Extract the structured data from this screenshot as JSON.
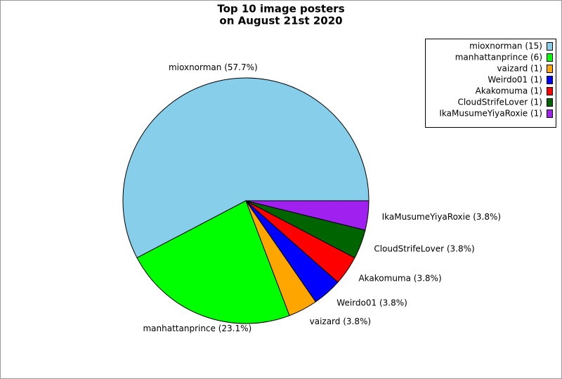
{
  "chart_data": {
    "type": "pie",
    "title": [
      "Top 10 image posters",
      "on August 21st 2020"
    ],
    "values": [
      15,
      6,
      1,
      1,
      1,
      1,
      1
    ],
    "value_labels": [
      "mioxnorman (57.7%)",
      "manhattanprince (23.1%)",
      "vaizard (3.8%)",
      "Weirdo01 (3.8%)",
      "Akakomuma (3.8%)",
      "CloudStrifeLover (3.8%)",
      "IkaMusumeYiyaRoxie (3.8%)"
    ],
    "legend_labels": [
      "mioxnorman (15)",
      "manhattanprince (6)",
      "vaizard (1)",
      "Weirdo01 (1)",
      "Akakomuma (1)",
      "CloudStrifeLover (1)",
      "IkaMusumeYiyaRoxie (1)"
    ],
    "colors": [
      "#87ceeb",
      "#00ff00",
      "#ffa500",
      "#0000ff",
      "#ff0000",
      "#006400",
      "#a020f0"
    ],
    "legend": "upper right"
  }
}
